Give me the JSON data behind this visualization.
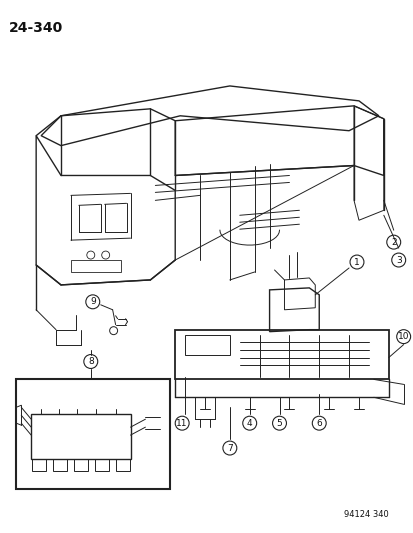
{
  "page_number": "24-340",
  "diagram_number": "94124 340",
  "background_color": "#ffffff",
  "line_color": "#222222",
  "label_color": "#111111",
  "part_labels": [
    "1",
    "2",
    "3",
    "4",
    "5",
    "6",
    "7",
    "8",
    "9",
    "10",
    "11"
  ],
  "figsize": [
    4.14,
    5.33
  ],
  "dpi": 100
}
